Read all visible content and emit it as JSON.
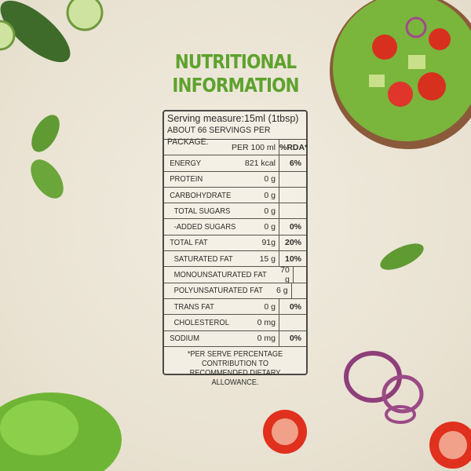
{
  "title_line1": "NUTRITIONAL",
  "title_line2": "INFORMATION",
  "colors": {
    "title": "#5ea22e",
    "border": "#4a4a45",
    "background": "#ece6d8"
  },
  "panel": {
    "serving_measure": "Serving measure:15ml (1tbsp)",
    "servings_per_package": "ABOUT 66 SERVINGS PER PACKAGE.",
    "header": {
      "per": "PER 100 ml",
      "rda": "%RDA*"
    },
    "rows": [
      {
        "name": "ENERGY",
        "value": "821 kcal",
        "rda": "6%"
      },
      {
        "name": "PROTEIN",
        "value": "0 g",
        "rda": ""
      },
      {
        "name": "CARBOHYDRATE",
        "value": "0 g",
        "rda": ""
      },
      {
        "name": "TOTAL SUGARS",
        "value": "0 g",
        "rda": ""
      },
      {
        "name": "-ADDED SUGARS",
        "value": "0 g",
        "rda": "0%"
      },
      {
        "name": "TOTAL FAT",
        "value": "91g",
        "rda": "20%"
      },
      {
        "name": "SATURATED FAT",
        "value": "15 g",
        "rda": "10%"
      },
      {
        "name": "MONOUNSATURATED FAT",
        "value": "70 g",
        "rda": ""
      },
      {
        "name": "POLYUNSATURATED FAT",
        "value": "6 g",
        "rda": ""
      },
      {
        "name": "TRANS FAT",
        "value": "0 g",
        "rda": "0%"
      },
      {
        "name": "CHOLESTEROL",
        "value": "0 mg",
        "rda": ""
      },
      {
        "name": "SODIUM",
        "value": "0 mg",
        "rda": "0%"
      }
    ],
    "footnote": "*PER SERVE PERCENTAGE CONTRIBUTION TO RECOMMENDED DIETARY ALLOWANCE."
  }
}
